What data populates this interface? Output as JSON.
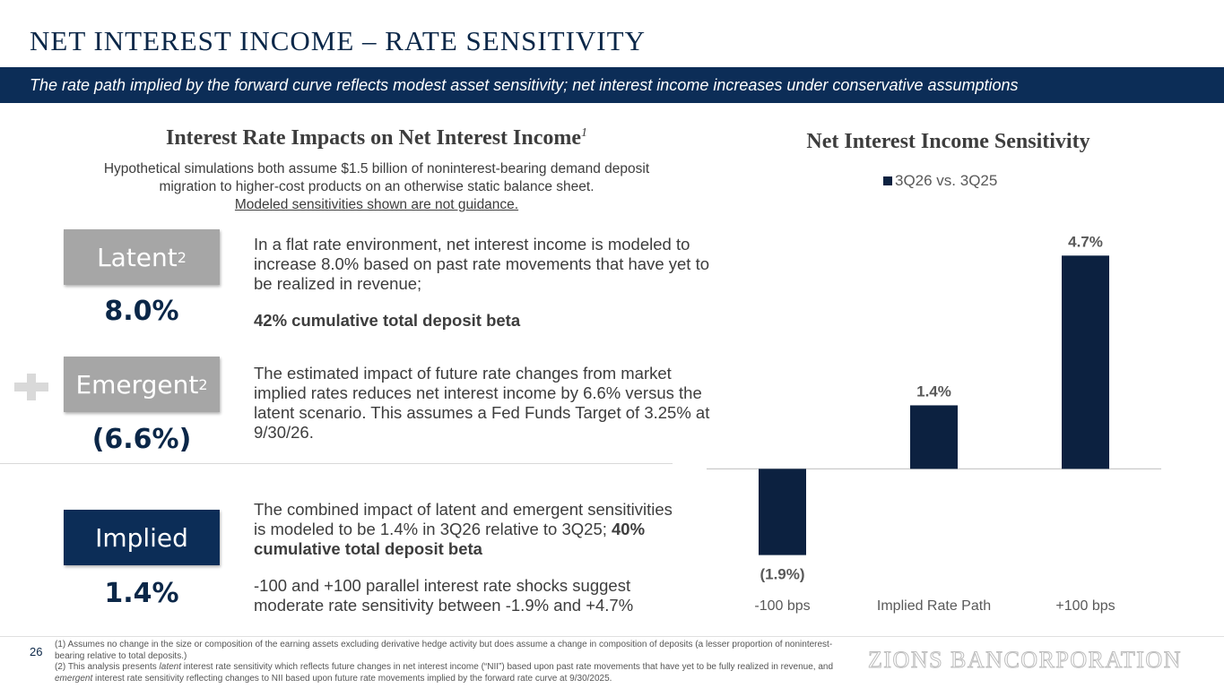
{
  "page": {
    "title": "NET INTEREST INCOME – RATE SENSITIVITY",
    "banner": "The rate path implied by the forward curve reflects modest asset sensitivity; net interest income increases under conservative assumptions",
    "page_number": "26",
    "logo": "ZIONS BANCORPORATION"
  },
  "left": {
    "heading": "Interest Rate Impacts on Net Interest Income",
    "heading_sup": "1",
    "sub_line1": "Hypothetical simulations both assume $1.5 billion of noninterest-bearing demand deposit",
    "sub_line2": "migration to higher-cost products on an otherwise static balance sheet.",
    "sub_line3": "Modeled sensitivities shown are not guidance."
  },
  "latent": {
    "label": "Latent",
    "sup": "2",
    "value": "8.0%",
    "desc": "In a flat rate environment, net interest income is modeled to increase 8.0% based on past rate movements that have yet to be realized in revenue;",
    "beta": "42% cumulative total deposit beta"
  },
  "emergent": {
    "label": "Emergent",
    "sup": "2",
    "value": "(6.6%)",
    "desc": "The estimated impact of future rate changes from market implied rates reduces net interest income by 6.6% versus the latent scenario. This assumes a Fed Funds Target of 3.25% at 9/30/26."
  },
  "implied": {
    "label": "Implied",
    "value": "1.4%",
    "desc": "The combined impact of latent and emergent sensitivities is modeled to be 1.4% in 3Q26 relative to 3Q25;",
    "beta": "40% cumulative total deposit beta",
    "desc2": "-100 and +100 parallel interest rate shocks suggest moderate rate sensitivity between -1.9% and +4.7%"
  },
  "chart_data": {
    "type": "bar",
    "title": "Net Interest Income Sensitivity",
    "categories": [
      "-100 bps",
      "Implied Rate Path",
      "+100 bps"
    ],
    "series": [
      {
        "name": "3Q26 vs. 3Q25",
        "values": [
          -1.9,
          1.4,
          4.7
        ]
      }
    ],
    "data_labels": [
      "(1.9%)",
      "1.4%",
      "4.7%"
    ],
    "ylim": [
      -2.5,
      5.2
    ],
    "color": "#0c2140",
    "legend_position": "top"
  },
  "footnotes": {
    "n1": "(1) Assumes no change in the size or composition of the earning assets excluding derivative hedge activity but does assume a change in composition of deposits (a lesser proportion of noninterest-bearing relative to total deposits.)",
    "n2_a": "(2) This analysis presents ",
    "n2_b": "latent",
    "n2_c": " interest rate sensitivity which reflects future changes in net interest income (“NII”) based upon past rate movements that have yet to be fully realized in revenue, and ",
    "n2_d": "emergent",
    "n2_e": " interest rate sensitivity reflecting changes to NII based upon future rate movements implied by the forward rate curve at 9/30/2025."
  }
}
